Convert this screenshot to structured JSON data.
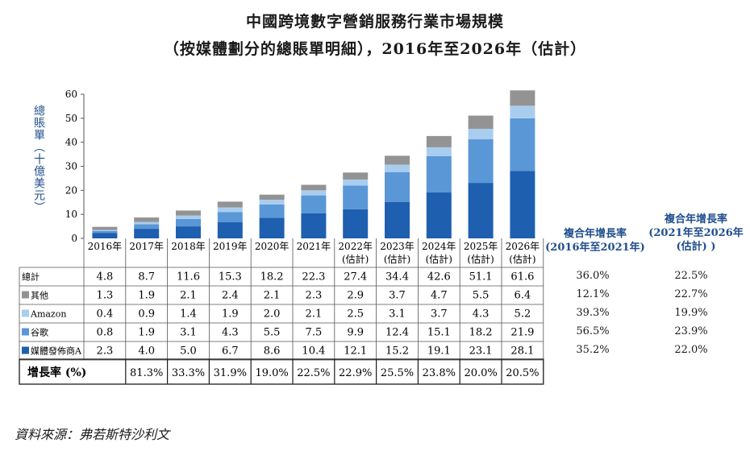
{
  "title_line1": "中國跨境數字營銷服務行業市場規模",
  "title_line2": "（按媒體劃分的總賬單明細），2016年至2026年（估計）",
  "ylabel": "總賬單（十億美元）",
  "source": "資料來源：弗若斯特沙利文",
  "cagr_header_1_line1": "複合年增長率",
  "cagr_header_1_line2": "(2016年至2021年)",
  "cagr_header_2_line1": "複合年增長率",
  "cagr_header_2_line2": "(2021年至2026年",
  "cagr_header_2_line3": "(估計) )",
  "growth_label": "增長率 (%)",
  "chart_data": {
    "type": "bar",
    "stacked": true,
    "categories": [
      "2016年",
      "2017年",
      "2018年",
      "2019年",
      "2020年",
      "2021年",
      "2022年\n(估計)",
      "2023年\n(估計)",
      "2024年\n(估計)",
      "2025年\n(估計)",
      "2026年\n(估計)"
    ],
    "ylim": [
      0,
      60
    ],
    "yticks": [
      0,
      10,
      20,
      30,
      40,
      50,
      60
    ],
    "series": [
      {
        "name": "媒體發佈商A",
        "color": "#1f5fb0",
        "values": [
          2.3,
          4.0,
          5.0,
          6.7,
          8.6,
          10.4,
          12.1,
          15.2,
          19.1,
          23.1,
          28.1
        ]
      },
      {
        "name": "谷歌",
        "color": "#5a97d6",
        "values": [
          0.8,
          1.9,
          3.1,
          4.3,
          5.5,
          7.5,
          9.9,
          12.4,
          15.1,
          18.2,
          21.9
        ]
      },
      {
        "name": "Amazon",
        "color": "#a9cdef",
        "values": [
          0.4,
          0.9,
          1.4,
          1.9,
          2.0,
          2.1,
          2.5,
          3.1,
          3.7,
          4.3,
          5.2
        ]
      },
      {
        "name": "其他",
        "color": "#939393",
        "values": [
          1.3,
          1.9,
          2.1,
          2.4,
          2.1,
          2.3,
          2.9,
          3.7,
          4.7,
          5.5,
          6.4
        ]
      }
    ],
    "table_rows": [
      {
        "label": "總計",
        "icon": "",
        "values": [
          "4.8",
          "8.7",
          "11.6",
          "15.3",
          "18.2",
          "22.3",
          "27.4",
          "34.4",
          "42.6",
          "51.1",
          "61.6"
        ],
        "cagr1": "36.0%",
        "cagr2": "22.5%"
      },
      {
        "label": "其他",
        "icon": "#939393",
        "values": [
          "1.3",
          "1.9",
          "2.1",
          "2.4",
          "2.1",
          "2.3",
          "2.9",
          "3.7",
          "4.7",
          "5.5",
          "6.4"
        ],
        "cagr1": "12.1%",
        "cagr2": "22.7%"
      },
      {
        "label": "Amazon",
        "icon": "#a9cdef",
        "values": [
          "0.4",
          "0.9",
          "1.4",
          "1.9",
          "2.0",
          "2.1",
          "2.5",
          "3.1",
          "3.7",
          "4.3",
          "5.2"
        ],
        "cagr1": "39.3%",
        "cagr2": "19.9%"
      },
      {
        "label": "谷歌",
        "icon": "#5a97d6",
        "values": [
          "0.8",
          "1.9",
          "3.1",
          "4.3",
          "5.5",
          "7.5",
          "9.9",
          "12.4",
          "15.1",
          "18.2",
          "21.9"
        ],
        "cagr1": "56.5%",
        "cagr2": "23.9%"
      },
      {
        "label": "媒體發佈商A",
        "icon": "#1f5fb0",
        "values": [
          "2.3",
          "4.0",
          "5.0",
          "6.7",
          "8.6",
          "10.4",
          "12.1",
          "15.2",
          "19.1",
          "23.1",
          "28.1"
        ],
        "cagr1": "35.2%",
        "cagr2": "22.0%"
      }
    ],
    "growth_rates": [
      "",
      "81.3%",
      "33.3%",
      "31.9%",
      "19.0%",
      "22.5%",
      "22.9%",
      "25.5%",
      "23.8%",
      "20.0%",
      "20.5%"
    ]
  }
}
